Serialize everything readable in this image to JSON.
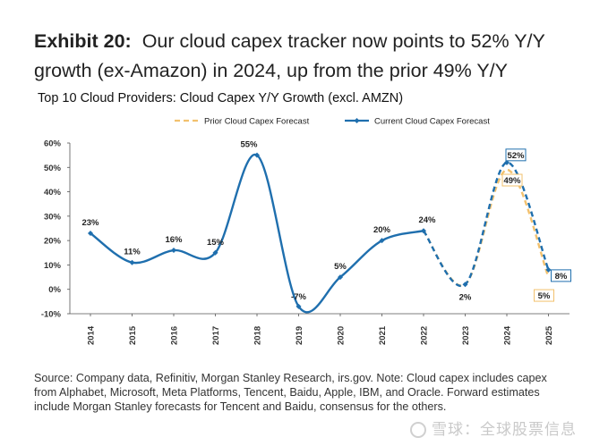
{
  "exhibit": {
    "label": "Exhibit 20:",
    "headline": "Our cloud capex tracker now points to 52% Y/Y growth (ex-Amazon) in 2024, up from the prior 49% Y/Y"
  },
  "source_note": "Source: Company data, Refinitiv, Morgan Stanley Research, irs.gov. Note: Cloud capex includes capex from Alphabet, Microsoft, Meta Platforms, Tencent, Baidu, Apple, IBM, and Oracle. Forward estimates include Morgan Stanley forecasts for Tencent and Baidu, consensus for the others.",
  "watermark": "雪球：全球股票信息",
  "colors": {
    "current": "#1f6fae",
    "prior": "#f2c16e",
    "axis": "#333333",
    "box_prior": "#f2c16e",
    "box_current": "#1f6fae"
  },
  "chart_data": {
    "type": "line",
    "title": "Top 10 Cloud Providers: Cloud Capex Y/Y Growth (excl. AMZN)",
    "xlabel": "",
    "ylabel": "",
    "ylim": [
      -10,
      60
    ],
    "yticks": [
      -10,
      0,
      10,
      20,
      30,
      40,
      50,
      60
    ],
    "ytick_labels": [
      "-10%",
      "0%",
      "10%",
      "20%",
      "30%",
      "40%",
      "50%",
      "60%"
    ],
    "x": [
      "2014",
      "2015",
      "2016",
      "2017",
      "2018",
      "2019",
      "2020",
      "2021",
      "2022",
      "2023",
      "2024",
      "2025"
    ],
    "grid": false,
    "legend_position": "top",
    "series": [
      {
        "name": "Prior Cloud Capex Forecast",
        "style": "dashed",
        "values": [
          null,
          null,
          null,
          null,
          null,
          null,
          null,
          null,
          null,
          2,
          49,
          5
        ],
        "labels": [
          null,
          null,
          null,
          null,
          null,
          null,
          null,
          null,
          null,
          null,
          "49%",
          "5%"
        ]
      },
      {
        "name": "Current Cloud Capex Forecast",
        "style": "solid-then-dashed",
        "forecast_from": "2023",
        "values": [
          23,
          11,
          16,
          15,
          55,
          -7,
          5,
          20,
          24,
          2,
          52,
          8
        ],
        "labels": [
          "23%",
          "11%",
          "16%",
          "15%",
          "55%",
          "-7%",
          "5%",
          "20%",
          "24%",
          "2%",
          "52%",
          "8%"
        ]
      }
    ]
  }
}
